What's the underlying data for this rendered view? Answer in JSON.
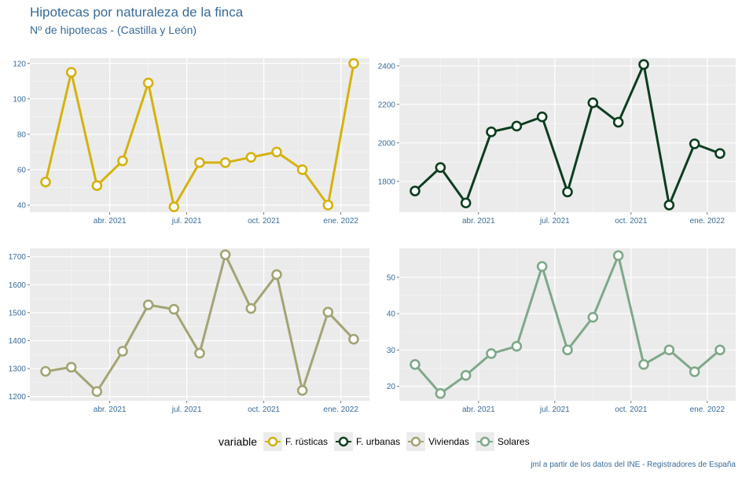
{
  "title": "Hipotecas por naturaleza de la finca",
  "subtitle": "Nº de hipotecas - (Castilla y León)",
  "caption": "jml a partir de los datos del INE - Registradores de España",
  "legend": {
    "title": "variable",
    "items": [
      {
        "label": "F. rústicas",
        "color": "#d4b20f"
      },
      {
        "label": "F. urbanas",
        "color": "#0d3d1f"
      },
      {
        "label": "Viviendas",
        "color": "#a3a474"
      },
      {
        "label": "Solares",
        "color": "#7fa88a"
      }
    ]
  },
  "chart_data": [
    {
      "type": "line",
      "series": [
        {
          "name": "F. rústicas",
          "color": "#d4b20f",
          "values": [
            53,
            115,
            51,
            65,
            109,
            39,
            64,
            64,
            67,
            70,
            60,
            40,
            120
          ]
        }
      ],
      "x": [
        "2021-01",
        "2021-02",
        "2021-03",
        "2021-04",
        "2021-05",
        "2021-06",
        "2021-07",
        "2021-08",
        "2021-09",
        "2021-10",
        "2021-11",
        "2021-12",
        "2022-01"
      ],
      "x_ticks": [
        "abr. 2021",
        "jul. 2021",
        "oct. 2021",
        "ene. 2022"
      ],
      "y_ticks": [
        40,
        60,
        80,
        100,
        120
      ],
      "ylim": [
        36,
        123
      ]
    },
    {
      "type": "line",
      "series": [
        {
          "name": "F. urbanas",
          "color": "#0d3d1f",
          "values": [
            1750,
            1872,
            1688,
            2057,
            2087,
            2135,
            1745,
            2208,
            2107,
            2407,
            1677,
            1995,
            1945
          ]
        }
      ],
      "x": [
        "2021-01",
        "2021-02",
        "2021-03",
        "2021-04",
        "2021-05",
        "2021-06",
        "2021-07",
        "2021-08",
        "2021-09",
        "2021-10",
        "2021-11",
        "2021-12",
        "2022-01"
      ],
      "x_ticks": [
        "abr. 2021",
        "jul. 2021",
        "oct. 2021",
        "ene. 2022"
      ],
      "y_ticks": [
        1800,
        2000,
        2200,
        2400
      ],
      "ylim": [
        1640,
        2440
      ]
    },
    {
      "type": "line",
      "series": [
        {
          "name": "Viviendas",
          "color": "#a3a474",
          "values": [
            1290,
            1305,
            1218,
            1362,
            1528,
            1512,
            1355,
            1707,
            1515,
            1636,
            1222,
            1502,
            1405
          ]
        }
      ],
      "x": [
        "2021-01",
        "2021-02",
        "2021-03",
        "2021-04",
        "2021-05",
        "2021-06",
        "2021-07",
        "2021-08",
        "2021-09",
        "2021-10",
        "2021-11",
        "2021-12",
        "2022-01"
      ],
      "x_ticks": [
        "abr. 2021",
        "jul. 2021",
        "oct. 2021",
        "ene. 2022"
      ],
      "y_ticks": [
        1200,
        1300,
        1400,
        1500,
        1600,
        1700
      ],
      "ylim": [
        1185,
        1730
      ]
    },
    {
      "type": "line",
      "series": [
        {
          "name": "Solares",
          "color": "#7fa88a",
          "values": [
            26,
            18,
            23,
            29,
            31,
            53,
            30,
            39,
            56,
            26,
            30,
            24,
            30
          ]
        }
      ],
      "x": [
        "2021-01",
        "2021-02",
        "2021-03",
        "2021-04",
        "2021-05",
        "2021-06",
        "2021-07",
        "2021-08",
        "2021-09",
        "2021-10",
        "2021-11",
        "2021-12",
        "2022-01"
      ],
      "x_ticks": [
        "abr. 2021",
        "jul. 2021",
        "oct. 2021",
        "ene. 2022"
      ],
      "y_ticks": [
        20,
        30,
        40,
        50
      ],
      "ylim": [
        16,
        58
      ]
    }
  ]
}
